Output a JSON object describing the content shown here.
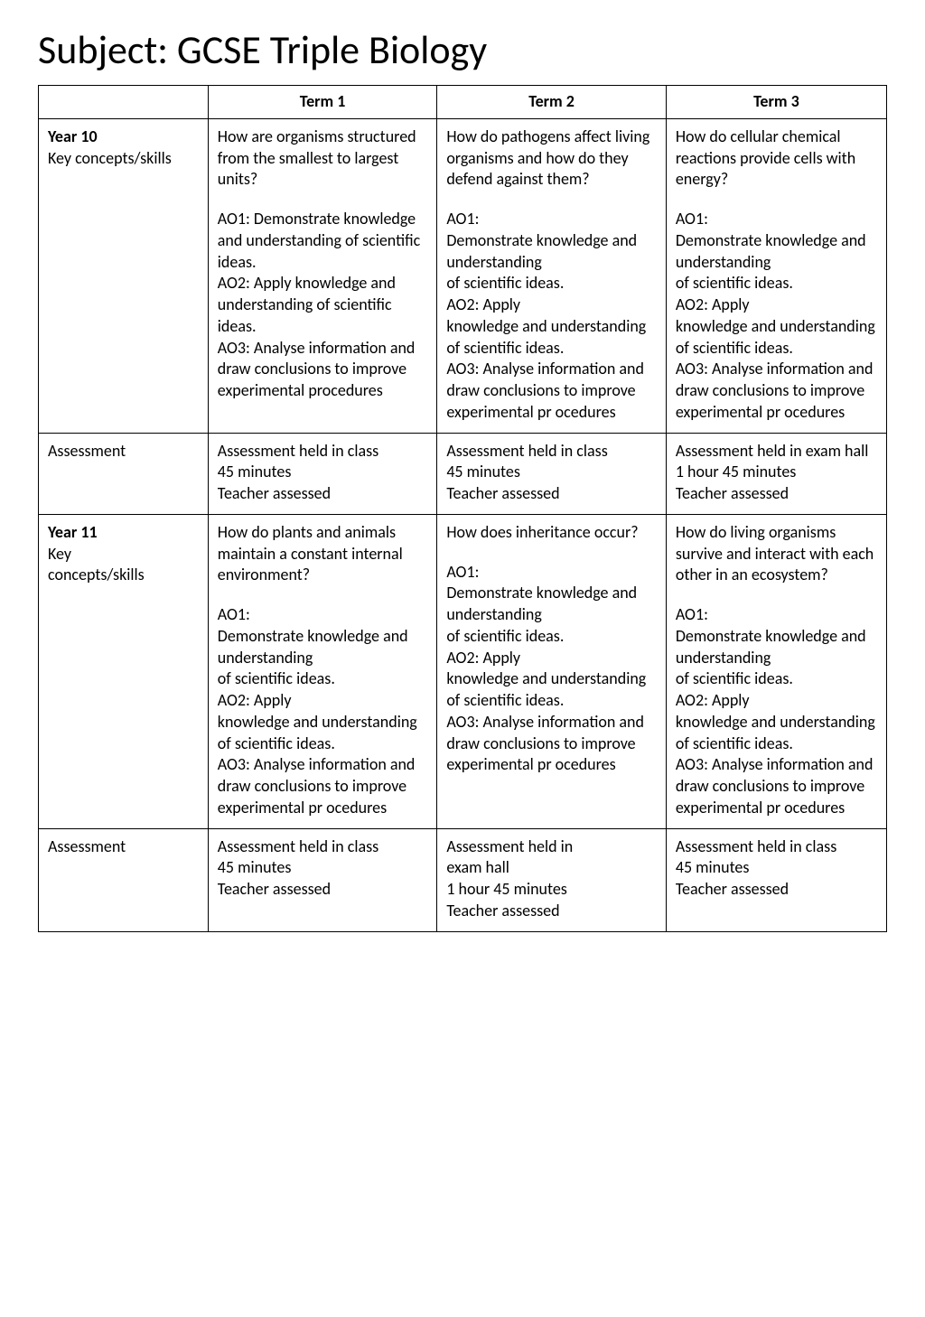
{
  "title": "Subject: GCSE Triple Biology",
  "headers": {
    "term1": "Term 1",
    "term2": "Term 2",
    "term3": "Term 3"
  },
  "rows": {
    "y10": {
      "label_strong": "Year 10",
      "label_sub": "Key concepts/skills",
      "t1": {
        "p1": "How are organisms structured from the smallest to largest units?",
        "p2": "AO1: Demonstrate knowledge and understanding of scientific ideas.\nAO2: Apply knowledge and understanding of scientific ideas.\nAO3: Analyse information and draw conclusions to improve experimental procedures"
      },
      "t2": {
        "p1": "How do pathogens affect living organisms and how do they defend against them?",
        "p2": "AO1:\nDemonstrate knowledge and understanding\nof scientific ideas.\nAO2: Apply\nknowledge and understanding\nof scientific ideas.\nAO3: Analyse information and draw conclusions to improve experimental pr ocedures"
      },
      "t3": {
        "p1": "How do cellular chemical reactions provide cells with energy?",
        "p2": "AO1:\nDemonstrate knowledge and understanding\nof scientific ideas.\nAO2: Apply\nknowledge and understanding\nof scientific ideas.\nAO3: Analyse information and draw conclusions to improve experimental pr ocedures"
      }
    },
    "y10asm": {
      "label": "Assessment",
      "t1": "Assessment held in class\n45 minutes\nTeacher assessed",
      "t2": "Assessment held in class\n45 minutes\nTeacher assessed",
      "t3": "Assessment held in exam hall\n1 hour 45 minutes\nTeacher assessed"
    },
    "y11": {
      "label_strong": "Year 11",
      "label_sub": "Key\nconcepts/skills",
      "t1": {
        "p1": "How do plants and animals maintain a constant internal environment?",
        "p2": "AO1:\nDemonstrate knowledge and understanding\nof scientific ideas.\nAO2: Apply\nknowledge and understanding\nof scientific ideas.\nAO3: Analyse information and draw conclusions to improve experimental pr ocedures"
      },
      "t2": {
        "p1": "How does inheritance occur?",
        "p2": "AO1:\nDemonstrate knowledge and understanding\nof scientific ideas.\nAO2: Apply\nknowledge and understanding\nof scientific ideas.\nAO3: Analyse information and draw conclusions to improve experimental pr ocedures"
      },
      "t3": {
        "p1": "How do living organisms survive and interact with each other in an ecosystem?",
        "p2": "AO1:\nDemonstrate knowledge and understanding\nof scientific ideas.\nAO2: Apply\nknowledge and understanding\nof scientific ideas.\nAO3: Analyse information and draw conclusions to improve experimental pr ocedures"
      }
    },
    "y11asm": {
      "label": "Assessment",
      "t1": "Assessment held in class\n45 minutes\nTeacher assessed",
      "t2": "Assessment held in\nexam hall\n1 hour 45 minutes\nTeacher assessed",
      "t3": "Assessment held in class\n45 minutes\nTeacher assessed"
    }
  }
}
